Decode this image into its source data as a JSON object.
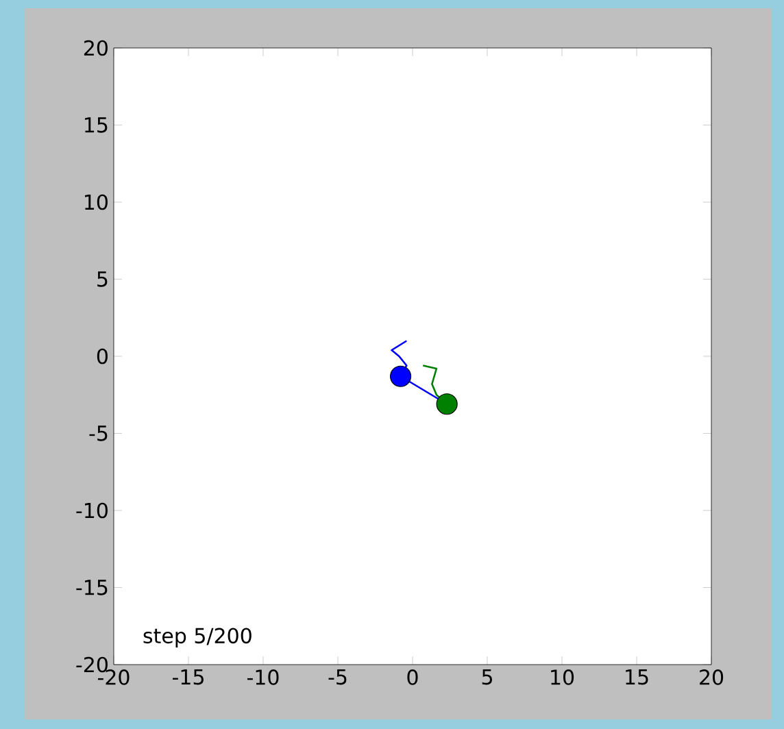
{
  "chart_data": {
    "type": "line",
    "xlim": [
      -20,
      20
    ],
    "ylim": [
      -20,
      20
    ],
    "xticks": [
      -20,
      -15,
      -10,
      -5,
      0,
      5,
      10,
      15,
      20
    ],
    "yticks": [
      -20,
      -15,
      -10,
      -5,
      0,
      5,
      10,
      15,
      20
    ],
    "grid": false,
    "annotations": [
      "step 5/200"
    ],
    "series": [
      {
        "marker": "none",
        "color": "#0000ff",
        "x": [
          -0.4,
          -1.4,
          -0.9,
          -0.4,
          -0.8
        ],
        "values": [
          1.0,
          0.4,
          0.0,
          -0.6,
          -1.3
        ]
      },
      {
        "marker": "none",
        "color": "#008000",
        "x": [
          0.7,
          1.6,
          1.3,
          1.6,
          2.3
        ],
        "values": [
          -0.6,
          -0.8,
          -1.8,
          -2.5,
          -3.1
        ]
      },
      {
        "marker": "none",
        "color": "#0000ff",
        "x": [
          -0.8,
          2.3
        ],
        "values": [
          -1.3,
          -3.1
        ]
      },
      {
        "type": "scatter",
        "marker": "circle",
        "color": "#0000ff",
        "x": [
          -0.8
        ],
        "values": [
          -1.3
        ]
      },
      {
        "type": "scatter",
        "marker": "circle",
        "color": "#008000",
        "x": [
          2.3
        ],
        "values": [
          -3.1
        ]
      }
    ]
  }
}
